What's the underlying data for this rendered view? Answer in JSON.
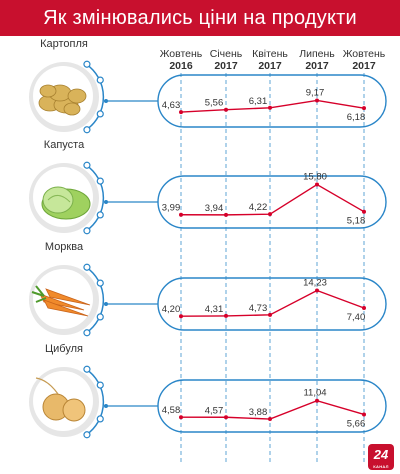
{
  "header": {
    "title": "Як змінювались ціни на продукти"
  },
  "logo": {
    "text": "24",
    "sub": "КАНАЛ"
  },
  "colors": {
    "header_bg": "#c8102e",
    "line": "#d6002a",
    "pill": "#2a86c8",
    "guide": "#2a86c8",
    "text": "#333333"
  },
  "chart_data": {
    "type": "line",
    "title": "Як змінювались ціни на продукти",
    "x": [
      {
        "month": "Жовтень",
        "year": "2016"
      },
      {
        "month": "Січень",
        "year": "2017"
      },
      {
        "month": "Квітень",
        "year": "2017"
      },
      {
        "month": "Липень",
        "year": "2017"
      },
      {
        "month": "Жовтень",
        "year": "2017"
      }
    ],
    "series": [
      {
        "name": "Картопля",
        "icon": "potato-icon",
        "values": [
          4.63,
          5.56,
          6.31,
          9.17,
          6.18
        ],
        "labels": [
          "4,63",
          "5,56",
          "6,31",
          "9,17",
          "6,18"
        ]
      },
      {
        "name": "Капуста",
        "icon": "cabbage-icon",
        "values": [
          3.99,
          3.94,
          4.22,
          15.8,
          5.18
        ],
        "labels": [
          "3,99",
          "3,94",
          "4,22",
          "15,80",
          "5,18"
        ]
      },
      {
        "name": "Морква",
        "icon": "carrot-icon",
        "values": [
          4.2,
          4.31,
          4.73,
          14.23,
          7.4
        ],
        "labels": [
          "4,20",
          "4,31",
          "4,73",
          "14,23",
          "7,40"
        ]
      },
      {
        "name": "Цибуля",
        "icon": "onion-icon",
        "values": [
          4.58,
          4.57,
          3.88,
          11.04,
          5.66
        ],
        "labels": [
          "4,58",
          "4,57",
          "3,88",
          "11,04",
          "5,66"
        ]
      }
    ],
    "grid": false,
    "legend": "left"
  }
}
